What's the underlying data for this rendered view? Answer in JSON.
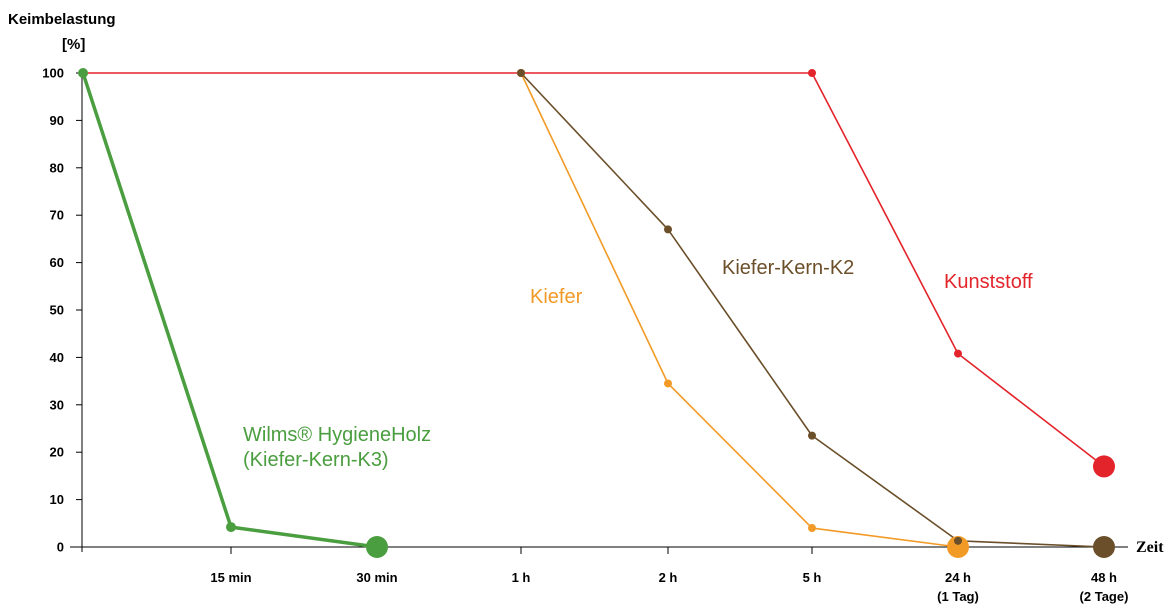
{
  "chart_data": {
    "type": "line",
    "ylabel": "Keimbelastung",
    "ylabel_unit": "[%]",
    "xlabel": "Zeit",
    "ylim": [
      0,
      100
    ],
    "yticks": [
      "0",
      "10",
      "20",
      "30",
      "40",
      "50",
      "60",
      "70",
      "80",
      "90",
      "100"
    ],
    "categories": [
      "0",
      "15 min",
      "30 min",
      "1 h",
      "2 h",
      "5 h",
      "24 h",
      "48 h"
    ],
    "xtick_labels": [
      {
        "text": "15 min",
        "sub": ""
      },
      {
        "text": "30 min",
        "sub": ""
      },
      {
        "text": "1 h",
        "sub": ""
      },
      {
        "text": "2 h",
        "sub": ""
      },
      {
        "text": "5 h",
        "sub": ""
      },
      {
        "text": "24 h",
        "sub": "(1 Tag)"
      },
      {
        "text": "48 h",
        "sub": "(2 Tage)"
      }
    ],
    "grid": false,
    "series": [
      {
        "name": "Wilms® HygieneHolz (Kiefer-Kern-K3)",
        "label_lines": [
          "Wilms® HygieneHolz",
          "(Kiefer-Kern-K3)"
        ],
        "color": "#4a9e3f",
        "x": [
          "0",
          "15 min",
          "30 min"
        ],
        "values": [
          100,
          4.2,
          0
        ]
      },
      {
        "name": "Kiefer",
        "label_lines": [
          "Kiefer"
        ],
        "color": "#f29a26",
        "x": [
          "1 h",
          "2 h",
          "5 h",
          "24 h"
        ],
        "values": [
          100,
          34.5,
          4,
          0
        ]
      },
      {
        "name": "Kiefer-Kern-K2",
        "label_lines": [
          "Kiefer-Kern-K2"
        ],
        "color": "#6b4f2a",
        "x": [
          "1 h",
          "2 h",
          "5 h",
          "24 h",
          "48 h"
        ],
        "values": [
          100,
          67,
          23.5,
          1.3,
          0
        ]
      },
      {
        "name": "Kunststoff",
        "label_lines": [
          "Kunststoff"
        ],
        "color": "#e3242b",
        "x": [
          "0",
          "1 h",
          "5 h",
          "24 h",
          "48 h"
        ],
        "values": [
          100,
          100,
          100,
          40.8,
          17
        ]
      }
    ]
  }
}
